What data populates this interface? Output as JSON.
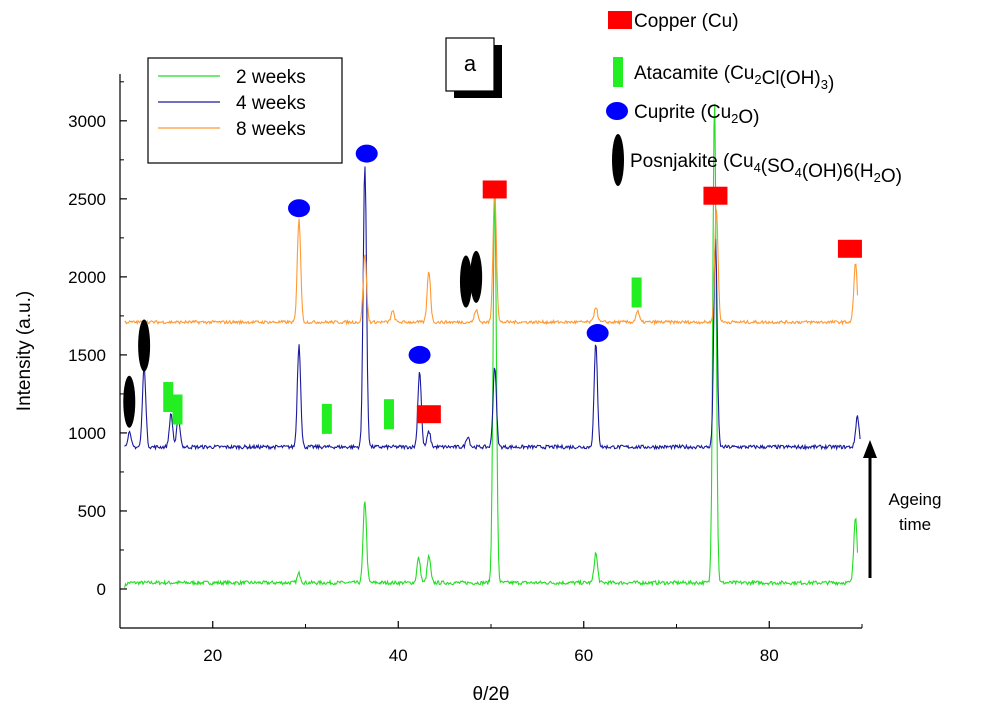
{
  "chart_data": {
    "type": "line",
    "panel_label": "a",
    "xlabel": "θ/2θ",
    "ylabel": "Intensity (a.u.)",
    "xlim": [
      10,
      90
    ],
    "ylim": [
      -250,
      3300
    ],
    "xticks": [
      20,
      40,
      60,
      80
    ],
    "yticks": [
      0,
      500,
      1000,
      1500,
      2000,
      2500,
      3000
    ],
    "grid": false,
    "legend_position": "top-left",
    "series": [
      {
        "name": "2 weeks",
        "color": "#22dd22",
        "baseline": 40,
        "noise": 12,
        "points": [
          [
            10.5,
            20
          ],
          [
            29.3,
            100
          ],
          [
            36.4,
            570
          ],
          [
            42.2,
            200
          ],
          [
            43.3,
            210
          ],
          [
            50.4,
            2530
          ],
          [
            61.3,
            230
          ],
          [
            74.1,
            3150
          ],
          [
            89.3,
            470
          ]
        ]
      },
      {
        "name": "4 weeks",
        "color": "#1a1a9e",
        "baseline": 910,
        "noise": 12,
        "points": [
          [
            11.0,
            1000
          ],
          [
            12.6,
            1430
          ],
          [
            15.5,
            1120
          ],
          [
            16.3,
            1100
          ],
          [
            29.3,
            1570
          ],
          [
            36.4,
            2720
          ],
          [
            42.3,
            1400
          ],
          [
            43.3,
            1010
          ],
          [
            47.5,
            980
          ],
          [
            50.4,
            1430
          ],
          [
            61.3,
            1570
          ],
          [
            74.2,
            2260
          ],
          [
            89.5,
            1110
          ]
        ]
      },
      {
        "name": "8 weeks",
        "color": "#ff9933",
        "baseline": 1710,
        "noise": 10,
        "points": [
          [
            29.3,
            2380
          ],
          [
            36.4,
            2150
          ],
          [
            39.4,
            1780
          ],
          [
            43.3,
            2040
          ],
          [
            48.4,
            1790
          ],
          [
            50.4,
            2560
          ],
          [
            61.3,
            1810
          ],
          [
            65.8,
            1780
          ],
          [
            74.3,
            2430
          ],
          [
            89.3,
            2090
          ]
        ]
      }
    ],
    "phase_legend": [
      {
        "label_parts": [
          [
            "Copper (Cu)",
            ""
          ]
        ],
        "marker": "square",
        "color": "#ff0000"
      },
      {
        "label_parts": [
          [
            "Atacamite (Cu",
            ""
          ],
          [
            "2",
            "sub"
          ],
          [
            "Cl(OH)",
            ""
          ],
          [
            "3",
            "sub"
          ],
          [
            ")",
            ""
          ]
        ],
        "marker": "bar",
        "color": "#22ee22"
      },
      {
        "label_parts": [
          [
            "Cuprite (Cu",
            ""
          ],
          [
            "2",
            "sub"
          ],
          [
            "O)",
            ""
          ]
        ],
        "marker": "circle",
        "color": "#0000ff"
      },
      {
        "label_parts": [
          [
            "Posnjakite (Cu",
            ""
          ],
          [
            "4",
            "sub"
          ],
          [
            "(SO",
            ""
          ],
          [
            "4",
            "sub"
          ],
          [
            "(OH)6(H",
            ""
          ],
          [
            "2",
            "sub"
          ],
          [
            "O)",
            ""
          ]
        ],
        "marker": "ellipse",
        "color": "#000000"
      }
    ],
    "phase_markers": [
      {
        "phase": "Copper",
        "marker": "square",
        "x": 50.4,
        "y": 2560
      },
      {
        "phase": "Copper",
        "marker": "square",
        "x": 74.2,
        "y": 2520
      },
      {
        "phase": "Copper",
        "marker": "square",
        "x": 88.7,
        "y": 2180
      },
      {
        "phase": "Copper",
        "marker": "square",
        "x": 43.3,
        "y": 1120
      },
      {
        "phase": "Atacamite",
        "marker": "bar",
        "x": 15.2,
        "y": 1230
      },
      {
        "phase": "Atacamite",
        "marker": "bar",
        "x": 16.2,
        "y": 1150
      },
      {
        "phase": "Atacamite",
        "marker": "bar",
        "x": 32.3,
        "y": 1090
      },
      {
        "phase": "Atacamite",
        "marker": "bar",
        "x": 39.0,
        "y": 1120
      },
      {
        "phase": "Atacamite",
        "marker": "bar",
        "x": 65.7,
        "y": 1900
      },
      {
        "phase": "Cuprite",
        "marker": "circle",
        "x": 29.3,
        "y": 2440
      },
      {
        "phase": "Cuprite",
        "marker": "circle",
        "x": 36.6,
        "y": 2790
      },
      {
        "phase": "Cuprite",
        "marker": "circle",
        "x": 42.3,
        "y": 1500
      },
      {
        "phase": "Cuprite",
        "marker": "circle",
        "x": 61.5,
        "y": 1640
      },
      {
        "phase": "Posnjakite",
        "marker": "ellipse",
        "x": 11.0,
        "y": 1200
      },
      {
        "phase": "Posnjakite",
        "marker": "ellipse",
        "x": 12.6,
        "y": 1560
      },
      {
        "phase": "Posnjakite",
        "marker": "ellipse",
        "x": 47.3,
        "y": 1970
      },
      {
        "phase": "Posnjakite",
        "marker": "ellipse",
        "x": 48.4,
        "y": 2000
      }
    ],
    "annotation": {
      "text_lines": [
        "Ageing",
        "time"
      ],
      "direction": "up"
    }
  }
}
